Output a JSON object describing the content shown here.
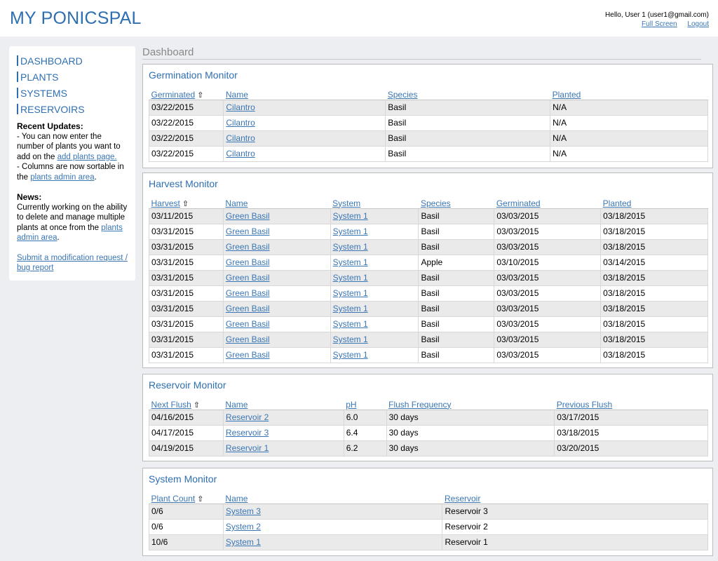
{
  "header": {
    "logo": "MY PONICSPAL",
    "greeting": "Hello, User 1 (user1@gmail.com)",
    "full_screen": "Full Screen",
    "logout": "Logout"
  },
  "sidebar": {
    "nav": [
      "DASHBOARD",
      "PLANTS",
      "SYSTEMS",
      "RESERVOIRS"
    ],
    "updates_title": "Recent Updates:",
    "update1_text": "- You can now enter the number of plants you want to add on the ",
    "update1_link": "add plants page.",
    "update2_text": "- Columns are now sortable in the ",
    "update2_link": "plants admin area",
    "update2_end": ".",
    "news_title": "News:",
    "news_text": "Currently working on the ability to delete and manage multiple plants at once from the ",
    "news_link": "plants admin area",
    "news_end": ".",
    "submit_link": "Submit a modification request / bug report"
  },
  "page_title": "Dashboard",
  "sort_icon": "up-arrow-outline-icon",
  "germination": {
    "title": "Germination Monitor",
    "headers": [
      "Germinated",
      "Name",
      "Species",
      "Planted"
    ],
    "rows": [
      [
        "03/22/2015",
        "Cilantro",
        "Basil",
        "N/A"
      ],
      [
        "03/22/2015",
        "Cilantro",
        "Basil",
        "N/A"
      ],
      [
        "03/22/2015",
        "Cilantro",
        "Basil",
        "N/A"
      ],
      [
        "03/22/2015",
        "Cilantro",
        "Basil",
        "N/A"
      ]
    ]
  },
  "harvest": {
    "title": "Harvest Monitor",
    "headers": [
      "Harvest",
      "Name",
      "System",
      "Species",
      "Germinated",
      "Planted"
    ],
    "rows": [
      [
        "03/11/2015",
        "Green Basil",
        "System 1",
        "Basil",
        "03/03/2015",
        "03/18/2015"
      ],
      [
        "03/31/2015",
        "Green Basil",
        "System 1",
        "Basil",
        "03/03/2015",
        "03/18/2015"
      ],
      [
        "03/31/2015",
        "Green Basil",
        "System 1",
        "Basil",
        "03/03/2015",
        "03/18/2015"
      ],
      [
        "03/31/2015",
        "Green Basil",
        "System 1",
        "Apple",
        "03/10/2015",
        "03/14/2015"
      ],
      [
        "03/31/2015",
        "Green Basil",
        "System 1",
        "Basil",
        "03/03/2015",
        "03/18/2015"
      ],
      [
        "03/31/2015",
        "Green Basil",
        "System 1",
        "Basil",
        "03/03/2015",
        "03/18/2015"
      ],
      [
        "03/31/2015",
        "Green Basil",
        "System 1",
        "Basil",
        "03/03/2015",
        "03/18/2015"
      ],
      [
        "03/31/2015",
        "Green Basil",
        "System 1",
        "Basil",
        "03/03/2015",
        "03/18/2015"
      ],
      [
        "03/31/2015",
        "Green Basil",
        "System 1",
        "Basil",
        "03/03/2015",
        "03/18/2015"
      ],
      [
        "03/31/2015",
        "Green Basil",
        "System 1",
        "Basil",
        "03/03/2015",
        "03/18/2015"
      ]
    ]
  },
  "reservoir": {
    "title": "Reservoir Monitor",
    "headers": [
      "Next Flush",
      "Name",
      "pH",
      "Flush Frequency",
      "Previous Flush"
    ],
    "rows": [
      [
        "04/16/2015",
        "Reservoir 2",
        "6.0",
        "30 days",
        "03/17/2015"
      ],
      [
        "04/17/2015",
        "Reservoir 3",
        "6.4",
        "30 days",
        "03/18/2015"
      ],
      [
        "04/19/2015",
        "Reservoir 1",
        "6.2",
        "30 days",
        "03/20/2015"
      ]
    ]
  },
  "system": {
    "title": "System Monitor",
    "headers": [
      "Plant Count",
      "Name",
      "Reservoir"
    ],
    "rows": [
      [
        "0/6",
        "System 3",
        "Reservoir 3"
      ],
      [
        "0/6",
        "System 2",
        "Reservoir 2"
      ],
      [
        "10/6",
        "System 1",
        "Reservoir 1"
      ]
    ]
  }
}
